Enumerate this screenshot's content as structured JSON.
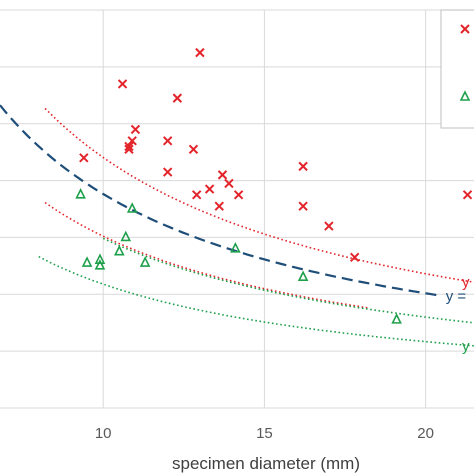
{
  "chart_data": {
    "type": "scatter",
    "xlabel": "specimen diameter (mm)",
    "x_ticks": [
      10,
      15,
      20
    ],
    "xlim": [
      6.8,
      21.5
    ],
    "ylim": [
      0,
      7
    ],
    "grid": true,
    "legend": "top-right",
    "series": [
      {
        "marker": "x",
        "color": "#e3252b",
        "points": [
          [
            13.0,
            6.25
          ],
          [
            10.6,
            5.7
          ],
          [
            12.3,
            5.45
          ],
          [
            11.0,
            4.9
          ],
          [
            10.9,
            4.7
          ],
          [
            12.0,
            4.7
          ],
          [
            10.8,
            4.6
          ],
          [
            10.8,
            4.55
          ],
          [
            12.8,
            4.55
          ],
          [
            9.4,
            4.4
          ],
          [
            16.2,
            4.25
          ],
          [
            12.0,
            4.15
          ],
          [
            13.7,
            4.1
          ],
          [
            13.9,
            3.95
          ],
          [
            13.3,
            3.85
          ],
          [
            12.9,
            3.75
          ],
          [
            14.2,
            3.75
          ],
          [
            13.6,
            3.55
          ],
          [
            16.2,
            3.55
          ],
          [
            17.0,
            3.2
          ],
          [
            17.8,
            2.65
          ],
          [
            21.3,
            3.75
          ]
        ]
      },
      {
        "marker": "triangle",
        "color": "#1ea04b",
        "points": [
          [
            9.3,
            3.75
          ],
          [
            10.9,
            3.5
          ],
          [
            10.7,
            3.0
          ],
          [
            14.1,
            2.8
          ],
          [
            10.5,
            2.75
          ],
          [
            9.9,
            2.6
          ],
          [
            9.9,
            2.5
          ],
          [
            9.5,
            2.55
          ],
          [
            11.3,
            2.55
          ],
          [
            16.2,
            2.3
          ],
          [
            19.1,
            1.55
          ]
        ]
      }
    ],
    "trendlines": [
      {
        "style": "dotted",
        "color": "#e3252b",
        "label": "y",
        "a": 35.0,
        "b": 0.9,
        "x_start": 8.2,
        "x_end": 21.5
      },
      {
        "style": "dotted",
        "color": "#e3252b",
        "label": "",
        "a": 24.0,
        "b": 0.9,
        "x_start": 8.2,
        "x_end": 18.2
      },
      {
        "style": "dashed",
        "color": "#1f4e79",
        "label": "y =",
        "a": 29.9,
        "b": 0.9,
        "x_start": 6.8,
        "x_end": 20.5
      },
      {
        "style": "dotted",
        "color": "#1ea04b",
        "label": "",
        "a": 23.7,
        "b": 0.9,
        "x_start": 10.0,
        "x_end": 21.5
      },
      {
        "style": "dotted",
        "color": "#1ea04b",
        "label": "y",
        "a": 17.3,
        "b": 0.9,
        "x_start": 8.0,
        "x_end": 21.5
      }
    ],
    "legend_entries": [
      {
        "marker": "x",
        "color": "#e3252b"
      },
      {
        "marker": "triangle",
        "color": "#1ea04b"
      }
    ]
  }
}
